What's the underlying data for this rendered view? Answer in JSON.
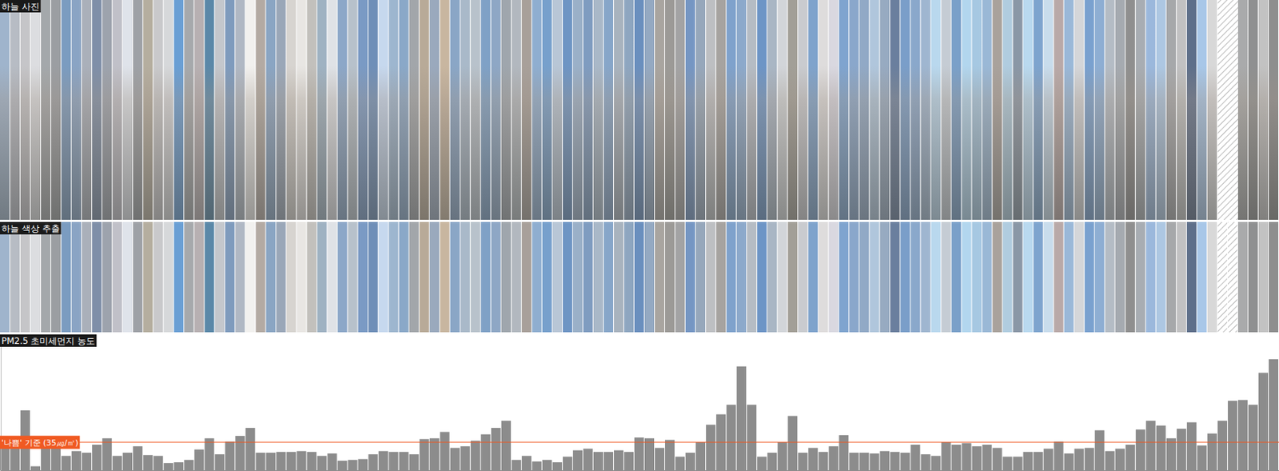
{
  "chart_data": [
    {
      "type": "photo_strip",
      "title": "하늘 사진",
      "colors": [
        "#9fb4cc",
        "#b7bcc4",
        "#c5c5c8",
        "#dcdde0",
        "#a4a8ab",
        "#9b9ea2",
        "#7b9cc0",
        "#8aa4c4",
        "#aab0ba",
        "#7f8fa8",
        "#9da3ad",
        "#c0c0c8",
        "#dfe3ea",
        "#9ea1a6",
        "#b5ae9f",
        "#c9c9cb",
        "#d6d8da",
        "#6a9fd4",
        "#a6a9ac",
        "#b7b0b2",
        "#5b88a8",
        "#c4c7cc",
        "#7f9bbd",
        "#b0b8c4",
        "#f2f1ef",
        "#b3aaa3",
        "#8aa5c3",
        "#9aa7b8",
        "#d7d4d0",
        "#e8e6e3",
        "#c2c0bc",
        "#9fb2c2",
        "#dfe2e6",
        "#8ca7c8",
        "#b7c1cb",
        "#7a9ac4",
        "#6f8fb8",
        "#c6d8ee",
        "#9db6cf",
        "#8aa8c8",
        "#a2a6aa",
        "#b8aa98",
        "#9aa9bd",
        "#c8b6a0",
        "#8aa6c6",
        "#a9b9c9",
        "#b8c2cb",
        "#7fa1c6",
        "#8ea7c5",
        "#9fa6ad",
        "#b2b8bf",
        "#a8a09a",
        "#8faed0",
        "#77a0cc",
        "#b8c6d6",
        "#6e95c4",
        "#9ab0c8",
        "#7f9cc0",
        "#a9b8c8",
        "#87a6c9",
        "#a8b3be",
        "#8ea6c0",
        "#6a8fbe",
        "#94a9c2",
        "#a9a5a0",
        "#9c9a97",
        "#a3a3a4",
        "#7596c3",
        "#96a7bb",
        "#bdbfc2",
        "#a6a3a0",
        "#7fa2cc",
        "#8ca9cb",
        "#b5bcc4",
        "#6d95c6",
        "#a9b6c4",
        "#d2d5d9",
        "#a29f97",
        "#c9cbcf",
        "#7fa3cc",
        "#dedcdc",
        "#d9d8e0",
        "#7fa4cf",
        "#8aa7cb",
        "#91a9c6",
        "#b0c6dc",
        "#97aac1",
        "#6a7f9e",
        "#7a9ec9",
        "#8aa8cb",
        "#9fb6d0",
        "#b9d8ee",
        "#c5ccd4",
        "#7aa0c9",
        "#b2d6ee",
        "#a6c8e2",
        "#9ab8d6",
        "#a9a29c",
        "#b0ccdf",
        "#8a97a6",
        "#b9d9ef",
        "#7ea4ce",
        "#c8dcec",
        "#b9a9a8",
        "#9ab8d8",
        "#d4d6d9",
        "#7aa1cf",
        "#8eaed3",
        "#b4bcc5",
        "#a5aab0",
        "#8f8f8f",
        "#a8adb3",
        "#9bb8dc",
        "#adc7e2",
        "#a6a8aa",
        "#c1c1c2",
        "#5e6f8a",
        "#a8c7e8",
        "#d8d8d8",
        null,
        null,
        "#a9aaab",
        "#8f9091",
        "#c2c2c2",
        "#8e8e8e"
      ]
    },
    {
      "type": "color_strip",
      "title": "하늘 색상 추출",
      "colors": [
        "#9fb4cc",
        "#b7bcc4",
        "#c5c5c8",
        "#dcdde0",
        "#a4a8ab",
        "#9b9ea2",
        "#7b9cc0",
        "#8aa4c4",
        "#aab0ba",
        "#7f8fa8",
        "#9da3ad",
        "#c0c0c8",
        "#dfe3ea",
        "#9ea1a6",
        "#b5ae9f",
        "#c9c9cb",
        "#d6d8da",
        "#6a9fd4",
        "#a6a9ac",
        "#b7b0b2",
        "#5b88a8",
        "#c4c7cc",
        "#7f9bbd",
        "#b0b8c4",
        "#f2f1ef",
        "#b3aaa3",
        "#8aa5c3",
        "#9aa7b8",
        "#d7d4d0",
        "#e8e6e3",
        "#c2c0bc",
        "#9fb2c2",
        "#dfe2e6",
        "#8ca7c8",
        "#b7c1cb",
        "#7a9ac4",
        "#6f8fb8",
        "#c6d8ee",
        "#9db6cf",
        "#8aa8c8",
        "#a2a6aa",
        "#b8aa98",
        "#9aa9bd",
        "#c8b6a0",
        "#8aa6c6",
        "#a9b9c9",
        "#b8c2cb",
        "#7fa1c6",
        "#8ea7c5",
        "#9fa6ad",
        "#b2b8bf",
        "#a8a09a",
        "#8faed0",
        "#77a0cc",
        "#b8c6d6",
        "#6e95c4",
        "#9ab0c8",
        "#7f9cc0",
        "#a9b8c8",
        "#87a6c9",
        "#a8b3be",
        "#8ea6c0",
        "#6a8fbe",
        "#94a9c2",
        "#a9a5a0",
        "#9c9a97",
        "#a3a3a4",
        "#7596c3",
        "#96a7bb",
        "#bdbfc2",
        "#a6a3a0",
        "#7fa2cc",
        "#8ca9cb",
        "#b5bcc4",
        "#6d95c6",
        "#a9b6c4",
        "#d2d5d9",
        "#a29f97",
        "#c9cbcf",
        "#7fa3cc",
        "#dedcdc",
        "#d9d8e0",
        "#7fa4cf",
        "#8aa7cb",
        "#91a9c6",
        "#b0c6dc",
        "#97aac1",
        "#6a7f9e",
        "#7a9ec9",
        "#8aa8cb",
        "#9fb6d0",
        "#b9d8ee",
        "#c5ccd4",
        "#7aa0c9",
        "#b2d6ee",
        "#a6c8e2",
        "#9ab8d6",
        "#a9a29c",
        "#b0ccdf",
        "#8a97a6",
        "#b9d9ef",
        "#7ea4ce",
        "#c8dcec",
        "#b9a9a8",
        "#9ab8d8",
        "#d4d6d9",
        "#7aa1cf",
        "#8eaed3",
        "#b4bcc5",
        "#a5aab0",
        "#8f8f8f",
        "#a8adb3",
        "#9bb8dc",
        "#adc7e2",
        "#a6a8aa",
        "#c1c1c2",
        "#5e6f8a",
        "#a8c7e8",
        "#d8d8d8",
        null,
        null,
        "#a9aaab",
        "#8f9091",
        "#c2c2c2",
        "#8e8e8e"
      ]
    },
    {
      "type": "bar",
      "title": "PM2.5 초미세먼지 농도",
      "categories": [
        null,
        null,
        null,
        null,
        null,
        null,
        null,
        null,
        null,
        null,
        null,
        null,
        null,
        null,
        null,
        null,
        null,
        null,
        null,
        null,
        null,
        null,
        null,
        null,
        null,
        null,
        null,
        null,
        null,
        null,
        null,
        null,
        null,
        null,
        null,
        null,
        null,
        null,
        null,
        null,
        null,
        null,
        null,
        null,
        null,
        null,
        null,
        null,
        null,
        null,
        null,
        null,
        null,
        null,
        null,
        null,
        null,
        null,
        null,
        null,
        null,
        null,
        null,
        null,
        null,
        null,
        null,
        null,
        null,
        null,
        null,
        null,
        null,
        null,
        null,
        null,
        null,
        null,
        null,
        null,
        null,
        null,
        null,
        null,
        null,
        null,
        null,
        null,
        null,
        null,
        null,
        null,
        null,
        null,
        null,
        null,
        null,
        null,
        null,
        null,
        null,
        null,
        null,
        null,
        null,
        null,
        null,
        null,
        null,
        null,
        null,
        null,
        null,
        null,
        null,
        null,
        null,
        null,
        null,
        null,
        null,
        null,
        null,
        null,
        null
      ],
      "values": [
        31,
        31,
        75,
        5,
        33,
        40,
        18,
        24,
        22,
        32,
        40,
        18,
        22,
        30,
        19,
        18,
        9,
        10,
        13,
        26,
        40,
        20,
        36,
        43,
        53,
        22,
        22,
        23,
        23,
        24,
        23,
        18,
        21,
        12,
        13,
        14,
        20,
        24,
        23,
        23,
        20,
        39,
        40,
        48,
        28,
        30,
        37,
        45,
        53,
        62,
        13,
        18,
        11,
        13,
        10,
        17,
        25,
        27,
        23,
        23,
        25,
        23,
        41,
        40,
        28,
        38,
        17,
        22,
        35,
        57,
        70,
        82,
        130,
        82,
        17,
        22,
        35,
        68,
        22,
        28,
        23,
        30,
        44,
        22,
        22,
        21,
        24,
        23,
        22,
        32,
        20,
        18,
        35,
        32,
        34,
        30,
        32,
        28,
        17,
        17,
        23,
        23,
        27,
        36,
        21,
        27,
        28,
        50,
        24,
        27,
        32,
        51,
        62,
        56,
        40,
        52,
        60,
        31,
        46,
        62,
        87,
        88,
        82,
        122,
        139
      ],
      "color": "#8c8c8c",
      "ylim": [
        0,
        170
      ],
      "tick_labels": false,
      "annotations": [
        {
          "value": 35,
          "label": "'나쁨' 기준 (35㎍/㎥)",
          "color": "#f05a22"
        }
      ]
    }
  ]
}
